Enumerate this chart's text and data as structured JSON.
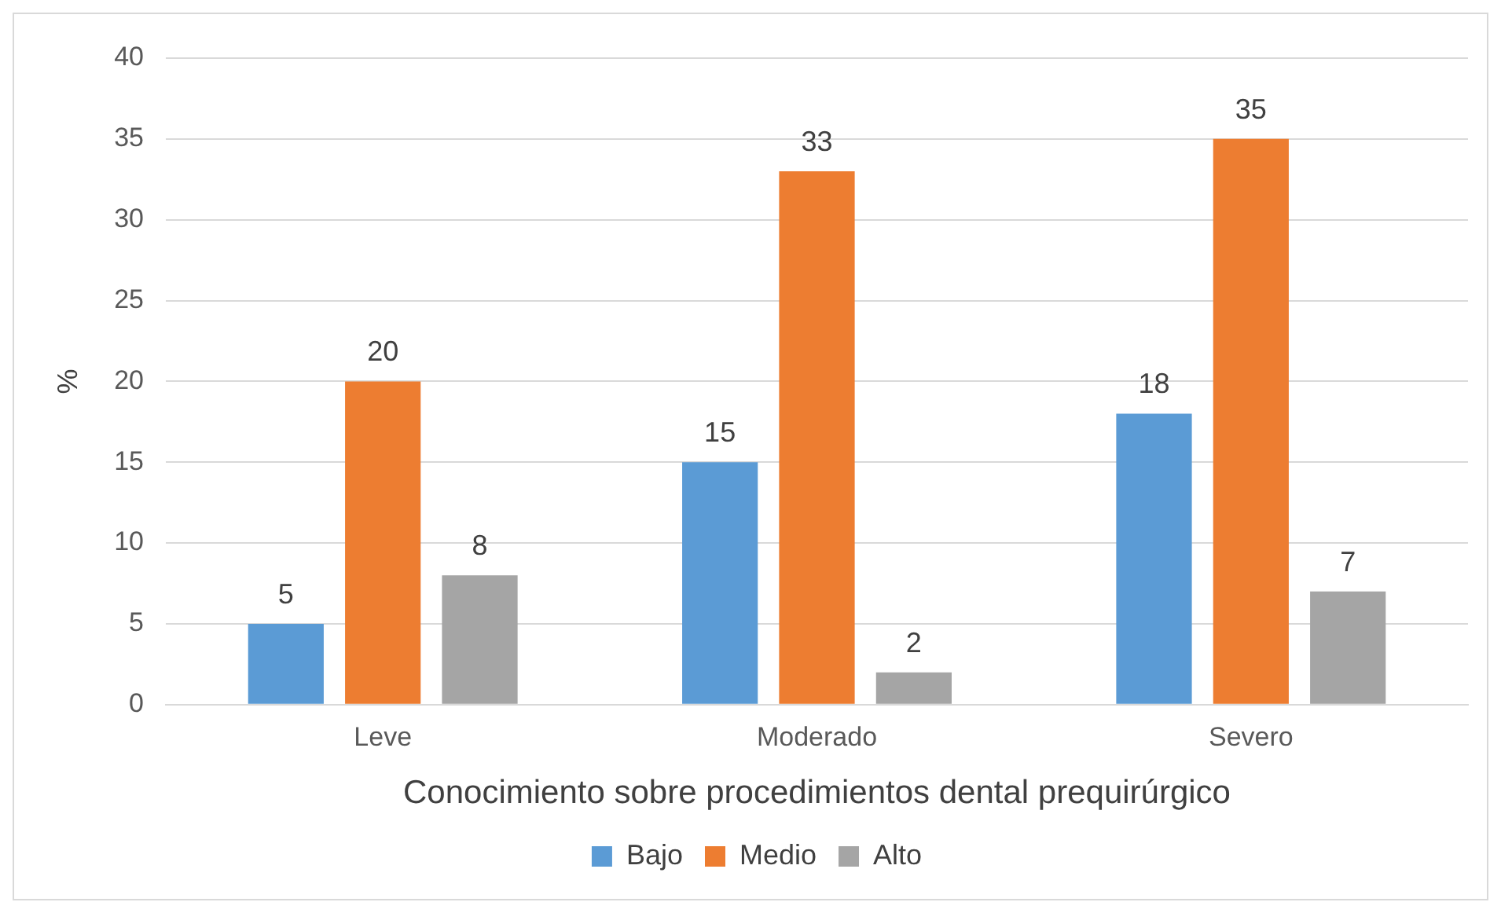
{
  "chart_data": {
    "type": "bar",
    "xlabel": "Conocimiento sobre procedimientos dental prequirúrgico",
    "ylabel": "%",
    "categories": [
      "Leve",
      "Moderado",
      "Severo"
    ],
    "series": [
      {
        "name": "Bajo",
        "color": "#5b9bd5",
        "values": [
          5,
          15,
          18
        ]
      },
      {
        "name": "Medio",
        "color": "#ed7d31",
        "values": [
          20,
          33,
          35
        ]
      },
      {
        "name": "Alto",
        "color": "#a5a5a5",
        "values": [
          8,
          2,
          7
        ]
      }
    ],
    "ylim": [
      0,
      40
    ],
    "yticks": [
      0,
      5,
      10,
      15,
      20,
      25,
      30,
      35,
      40
    ],
    "grid": "y",
    "legend": "bottom",
    "data_labels": true
  }
}
